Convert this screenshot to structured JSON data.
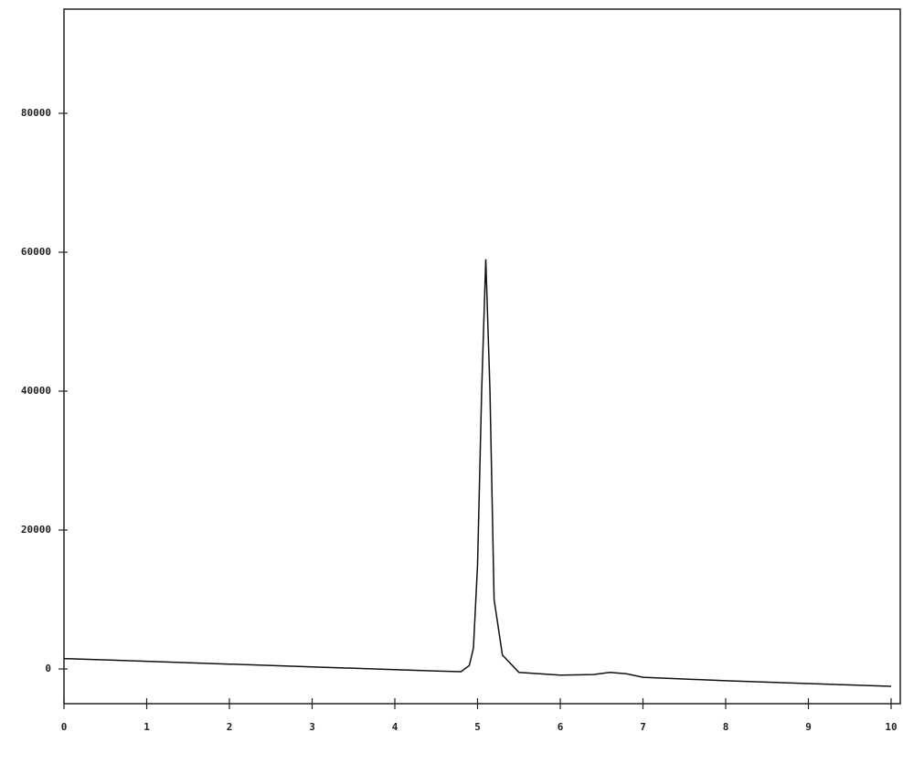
{
  "chart_data": {
    "type": "line",
    "x": [
      0,
      1,
      2,
      3,
      4,
      4.5,
      4.8,
      4.9,
      4.95,
      5.0,
      5.05,
      5.1,
      5.15,
      5.2,
      5.3,
      5.5,
      6.0,
      6.4,
      6.6,
      6.8,
      7.0,
      8,
      9,
      10
    ],
    "series": [
      {
        "color": "#111111",
        "values": [
          1500,
          1100,
          700,
          300,
          -100,
          -300,
          -400,
          500,
          3000,
          15000,
          40000,
          59000,
          40000,
          10000,
          2000,
          -500,
          -900,
          -800,
          -500,
          -700,
          -1200,
          -1700,
          -2100,
          -2500
        ]
      }
    ],
    "xlim": [
      0,
      10
    ],
    "xticks": [
      0,
      1,
      2,
      3,
      4,
      5,
      6,
      7,
      8,
      9,
      10
    ],
    "ylim": [
      -5000,
      95000
    ],
    "yticks": [
      0,
      20000,
      40000,
      60000,
      80000
    ]
  }
}
